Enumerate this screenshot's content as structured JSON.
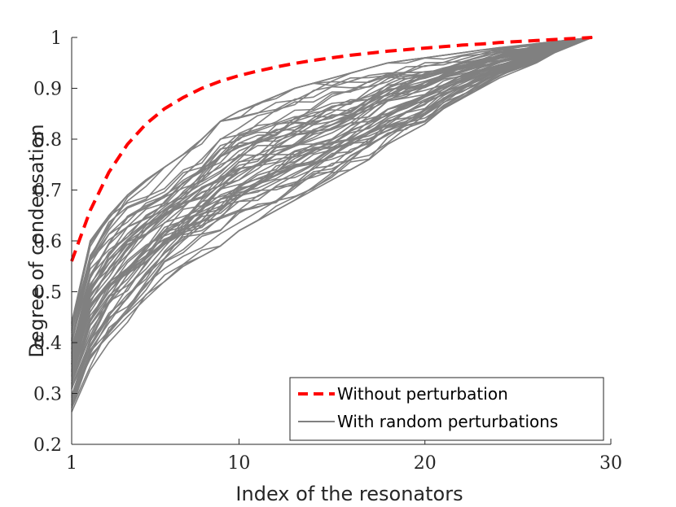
{
  "chart_data": {
    "type": "line",
    "title": "",
    "xlabel": "Index of the resonators",
    "ylabel": "Degree of condensation",
    "xlim": [
      1,
      30
    ],
    "ylim": [
      0.2,
      1.0
    ],
    "xticks": [
      1,
      10,
      20,
      30
    ],
    "xtick_labels": [
      "1",
      "10",
      "20",
      "30"
    ],
    "yticks": [
      0.2,
      0.3,
      0.4,
      0.5,
      0.6,
      0.7,
      0.8,
      0.9,
      1.0
    ],
    "ytick_labels": [
      "0.2",
      "0.3",
      "0.4",
      "0.5",
      "0.6",
      "0.7",
      "0.8",
      "0.9",
      "1"
    ],
    "grid": false,
    "legend_position": "bottom-right",
    "colors": {
      "without": "#ff0000",
      "with": "#808080",
      "axis": "#262626"
    },
    "series": [
      {
        "name": "Without perturbation",
        "style": "dashed",
        "x": [
          1,
          2,
          3,
          4,
          5,
          6,
          7,
          8,
          9,
          10,
          11,
          12,
          13,
          14,
          15,
          16,
          17,
          18,
          19,
          20,
          21,
          22,
          23,
          24,
          25,
          26,
          27,
          28,
          29
        ],
        "y": [
          0.56,
          0.66,
          0.735,
          0.79,
          0.83,
          0.86,
          0.882,
          0.9,
          0.914,
          0.925,
          0.934,
          0.942,
          0.949,
          0.955,
          0.96,
          0.965,
          0.969,
          0.973,
          0.976,
          0.979,
          0.982,
          0.985,
          0.987,
          0.99,
          0.992,
          0.994,
          0.996,
          0.998,
          1.0
        ]
      },
      {
        "name": "With random perturbations",
        "style": "solid",
        "ensemble": {
          "runs": 60,
          "x": [
            1,
            2,
            3,
            4,
            5,
            6,
            7,
            8,
            9,
            10,
            11,
            12,
            13,
            14,
            15,
            16,
            17,
            18,
            19,
            20,
            21,
            22,
            23,
            24,
            25,
            26,
            27,
            28,
            29
          ],
          "y_upper": [
            0.44,
            0.6,
            0.65,
            0.69,
            0.72,
            0.745,
            0.77,
            0.8,
            0.835,
            0.855,
            0.87,
            0.885,
            0.9,
            0.91,
            0.92,
            0.93,
            0.94,
            0.95,
            0.955,
            0.96,
            0.965,
            0.97,
            0.975,
            0.98,
            0.984,
            0.988,
            0.992,
            0.996,
            1.0
          ],
          "y_lower": [
            0.26,
            0.34,
            0.4,
            0.44,
            0.48,
            0.52,
            0.55,
            0.57,
            0.59,
            0.62,
            0.64,
            0.66,
            0.68,
            0.7,
            0.72,
            0.74,
            0.76,
            0.79,
            0.81,
            0.83,
            0.86,
            0.88,
            0.9,
            0.92,
            0.935,
            0.95,
            0.97,
            0.985,
            1.0
          ]
        }
      }
    ]
  }
}
